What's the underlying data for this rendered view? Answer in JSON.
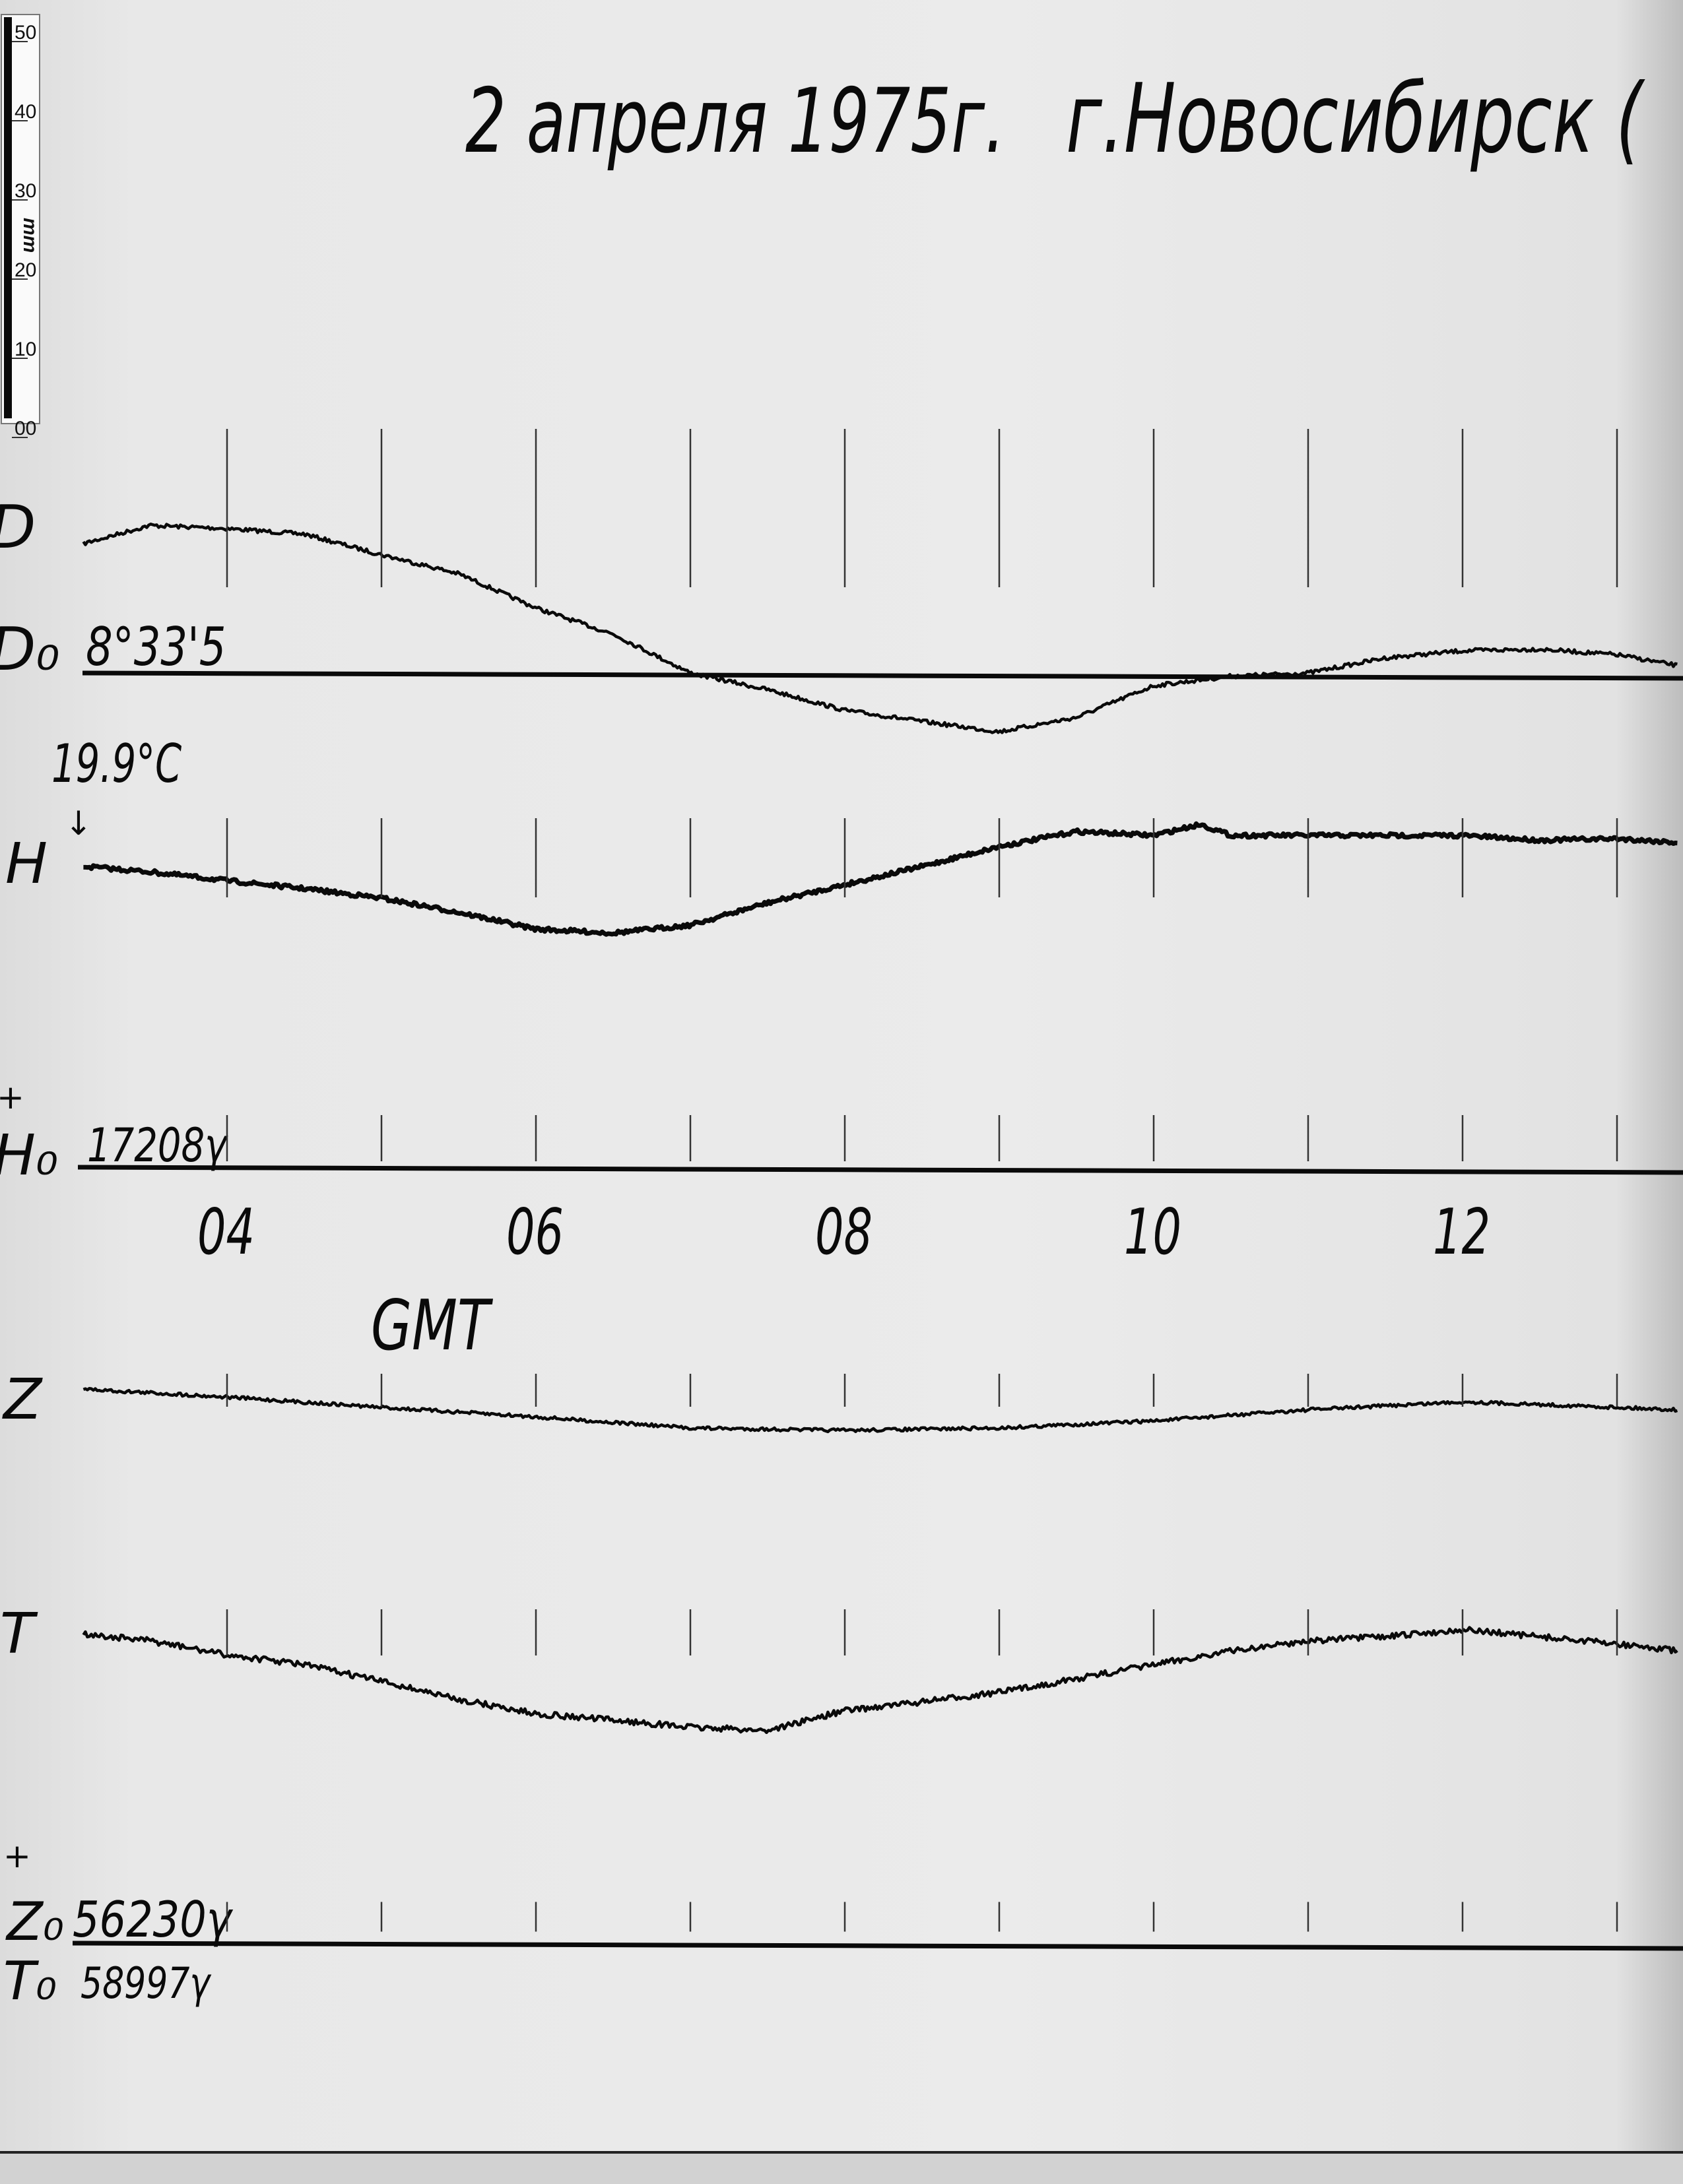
{
  "title": {
    "date": "2 апреля 1975г.",
    "place": "г.Новосибирск ("
  },
  "ruler": {
    "unit": "mm",
    "ticks": [
      "50",
      "40",
      "30",
      "20",
      "10",
      "00"
    ]
  },
  "labels": {
    "D": "D",
    "D0": "D₀",
    "D0_value": "8°33'5",
    "temperature": "19.9°C",
    "H": "H",
    "H0": "H₀",
    "H0_value": "17208γ",
    "Z": "Z",
    "T": "T",
    "Z0": "Z₀",
    "Z0_value": "56230γ",
    "T0": "T₀",
    "T0_value": "58997γ",
    "plus": "+",
    "time_axis": "GMT"
  },
  "colors": {
    "ink": "#0a0a0a",
    "paper": "#e8e8e8"
  },
  "chart_data": {
    "type": "line",
    "title": "2 апреля 1975г. г.Новосибирск (",
    "xlabel": "GMT",
    "x_ticks": [
      "04",
      "06",
      "08",
      "10",
      "12"
    ],
    "xlim": [
      3.07,
      13.4
    ],
    "hour_marks": [
      4,
      5,
      6,
      7,
      8,
      9,
      10,
      11,
      12,
      13
    ],
    "y_units": "mm deflection from baseline",
    "grid": false,
    "series": [
      {
        "name": "D",
        "baseline": "D₀ 8°33'5",
        "x": [
          3.07,
          3.5,
          4,
          4.5,
          5,
          5.5,
          6,
          6.5,
          7,
          7.5,
          8,
          8.5,
          9,
          9.5,
          10,
          10.5,
          11,
          11.5,
          12,
          12.5,
          13,
          13.4
        ],
        "values": [
          16.3,
          18.6,
          18.2,
          17.5,
          14.9,
          12.5,
          8.2,
          4.9,
          0,
          -2.1,
          -4.7,
          -6.1,
          -7.4,
          -5.6,
          -1.6,
          -0.4,
          0,
          1.9,
          2.8,
          3.0,
          2.3,
          0.9
        ]
      },
      {
        "name": "H",
        "baseline": "H₀ 17208γ",
        "x": [
          3.07,
          3.5,
          4,
          4.5,
          5,
          5.5,
          6,
          6.5,
          7,
          7.5,
          8,
          8.5,
          9,
          9.5,
          10,
          10.3,
          10.5,
          11,
          11.5,
          12,
          12.5,
          13,
          13.4
        ],
        "values": [
          37.9,
          37.2,
          36.1,
          35.1,
          33.9,
          32.1,
          30.0,
          29.5,
          30.5,
          33.3,
          35.6,
          37.9,
          40.4,
          42.3,
          41.8,
          43.2,
          41.8,
          41.8,
          41.8,
          41.8,
          41.2,
          41.4,
          40.9
        ]
      },
      {
        "name": "Z",
        "baseline": "Z₀ 56230γ",
        "x": [
          3.07,
          4,
          5,
          6,
          7,
          8,
          9,
          10,
          11,
          12,
          13,
          13.4
        ],
        "values": [
          69.8,
          68.8,
          67.5,
          66.3,
          64.9,
          64.6,
          64.9,
          65.8,
          67.2,
          68.2,
          67.5,
          67.2
        ]
      },
      {
        "name": "T",
        "baseline": "T₀ 58997γ",
        "x": [
          3.07,
          3.5,
          4,
          4.5,
          5,
          5.5,
          6,
          6.5,
          7,
          7.5,
          8,
          8.5,
          9,
          9.5,
          10,
          10.5,
          11,
          11.5,
          12,
          12.5,
          13,
          13.4
        ],
        "values": [
          38.9,
          38.1,
          36.3,
          35.1,
          33.0,
          30.7,
          28.9,
          28.1,
          27.2,
          26.8,
          29.3,
          30.4,
          31.6,
          33.3,
          35.1,
          36.8,
          38.1,
          38.6,
          39.5,
          38.6,
          37.7,
          36.8
        ]
      }
    ]
  }
}
